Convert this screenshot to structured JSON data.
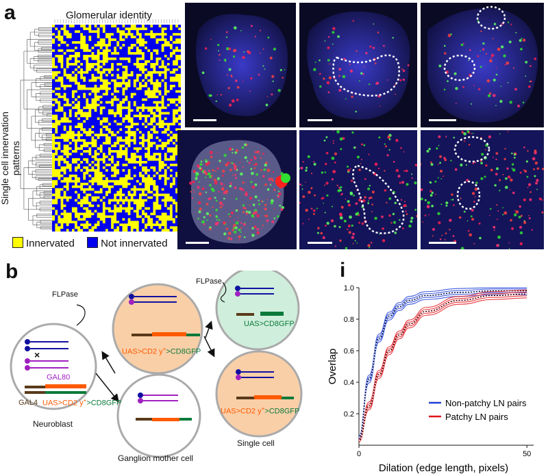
{
  "panel_a": {
    "label": "a",
    "heatmap_title": "Glomerular identity",
    "y_title": "Single cell innervation patterns",
    "legend": [
      {
        "label": "Innervated",
        "color": "#ffff00"
      },
      {
        "label": "Not innervated",
        "color": "#0000ee"
      }
    ]
  },
  "panel_b": {
    "label": "b",
    "flpase_left": "FLPase",
    "flpase_top": "FLPase",
    "x_mark": "×",
    "neuroblast": {
      "gal80": "GAL80",
      "gal4": "GAL4",
      "uas": "UAS>CD2 y",
      "sup": "+",
      "gfp": ">CD8GFP",
      "caption": "Neuroblast"
    },
    "gmc_caption": "Ganglion mother cell",
    "middle_cell": {
      "uas": "UAS>CD2 y",
      "sup": "+",
      "gfp": ">CD8GFP"
    },
    "green_cell": {
      "label": "UAS>CD8GFP"
    },
    "single_cell": {
      "uas": "UAS>CD2 y",
      "sup": "+",
      "gfp": ">CD8GFP",
      "caption": "Single cell"
    }
  },
  "panel_i": {
    "label": "i",
    "chart_data": {
      "type": "line",
      "xlabel": "Dilation (edge length, pixels)",
      "ylabel": "Overlap",
      "xlim": [
        0,
        52
      ],
      "ylim": [
        0,
        1.0
      ],
      "xticks": [
        0,
        50
      ],
      "yticks": [
        0.2,
        0.4,
        0.6,
        0.8,
        1.0
      ],
      "ytick_labels": [
        "0.2",
        "0.4",
        "0.6",
        "0.8",
        "1.0"
      ],
      "series": [
        {
          "name": "Non-patchy LN pairs",
          "color": "#1f3fd6",
          "x": [
            0,
            3,
            6,
            9,
            12,
            15,
            20,
            30,
            40,
            50
          ],
          "y": [
            0.05,
            0.42,
            0.68,
            0.82,
            0.88,
            0.92,
            0.95,
            0.97,
            0.98,
            0.98
          ]
        },
        {
          "name": "Patchy LN pairs",
          "color": "#e0141c",
          "x": [
            0,
            3,
            6,
            9,
            12,
            15,
            20,
            30,
            40,
            50
          ],
          "y": [
            0.03,
            0.25,
            0.45,
            0.6,
            0.7,
            0.77,
            0.85,
            0.92,
            0.95,
            0.96
          ]
        }
      ]
    }
  },
  "colors": {
    "blue": "#0000ee",
    "yellow": "#ffff00",
    "purple": "#a020c0",
    "orange": "#ff5a00",
    "green_dark": "#0b7a3a",
    "brown": "#5a3a1a",
    "navy": "#1010a0"
  }
}
